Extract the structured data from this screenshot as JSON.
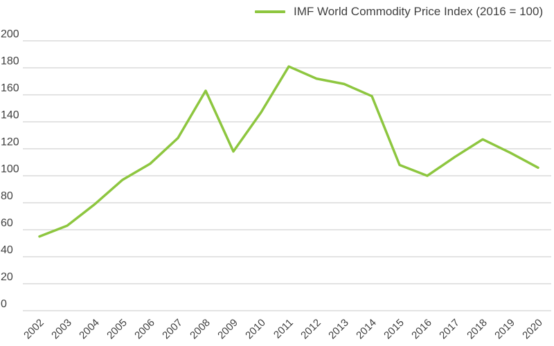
{
  "legend": {
    "label": "IMF World Commodity Price Index (2016 = 100)"
  },
  "chart_data": {
    "type": "line",
    "title": "",
    "xlabel": "",
    "ylabel": "",
    "x": [
      "2002",
      "2003",
      "2004",
      "2005",
      "2006",
      "2007",
      "2008",
      "2009",
      "2010",
      "2011",
      "2012",
      "2013",
      "2014",
      "2015",
      "2016",
      "2017",
      "2018",
      "2019",
      "2020"
    ],
    "series": [
      {
        "name": "IMF World Commodity Price Index (2016 = 100)",
        "color": "#8dc63f",
        "values": [
          55,
          63,
          79,
          97,
          109,
          128,
          163,
          118,
          147,
          181,
          172,
          168,
          159,
          108,
          100,
          114,
          127,
          117,
          106
        ]
      }
    ],
    "ylim": [
      0,
      200
    ],
    "yticks": [
      0,
      20,
      40,
      60,
      80,
      100,
      120,
      140,
      160,
      180,
      200
    ],
    "grid": "horizontal-only",
    "legend_position": "top-center",
    "colors": {
      "grid": "#d2d2d2",
      "tick_text": "#3f3f3f"
    }
  }
}
